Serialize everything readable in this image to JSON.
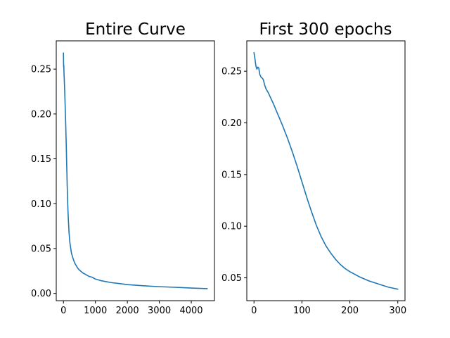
{
  "colors": {
    "line": "#1f77b4"
  },
  "chart_data": [
    {
      "type": "line",
      "title": "Entire Curve",
      "xlabel": "",
      "ylabel": "",
      "xlim": [
        -225,
        4725
      ],
      "ylim": [
        -0.0081,
        0.2815
      ],
      "x_ticks": [
        0,
        1000,
        2000,
        3000,
        4000
      ],
      "x_tick_labels": [
        "0",
        "1000",
        "2000",
        "3000",
        "4000"
      ],
      "y_ticks": [
        0.0,
        0.05,
        0.1,
        0.15,
        0.2,
        0.25
      ],
      "y_tick_labels": [
        "0.00",
        "0.05",
        "0.10",
        "0.15",
        "0.20",
        "0.25"
      ],
      "grid": false,
      "series": [
        {
          "x": [
            0,
            2,
            5,
            8,
            10,
            12,
            15,
            20,
            25,
            30,
            40,
            50,
            60,
            70,
            80,
            90,
            100,
            110,
            120,
            130,
            140,
            150,
            175,
            200,
            250,
            300,
            350,
            400,
            450,
            500,
            600,
            700,
            800,
            900,
            1000,
            1200,
            1500,
            1750,
            2000,
            2500,
            3000,
            3500,
            4000,
            4500
          ],
          "y": [
            0.268,
            0.262,
            0.254,
            0.252,
            0.253,
            0.254,
            0.248,
            0.243,
            0.24,
            0.234,
            0.225,
            0.214,
            0.202,
            0.19,
            0.176,
            0.162,
            0.146,
            0.131,
            0.117,
            0.105,
            0.094,
            0.085,
            0.068,
            0.057,
            0.045,
            0.039,
            0.034,
            0.031,
            0.028,
            0.026,
            0.023,
            0.021,
            0.019,
            0.018,
            0.016,
            0.014,
            0.012,
            0.011,
            0.0098,
            0.0085,
            0.0075,
            0.0068,
            0.006,
            0.0053
          ]
        }
      ]
    },
    {
      "type": "line",
      "title": "First 300 epochs",
      "xlabel": "",
      "ylabel": "",
      "xlim": [
        -15,
        315
      ],
      "ylim": [
        0.0279,
        0.2794
      ],
      "x_ticks": [
        0,
        100,
        200,
        300
      ],
      "x_tick_labels": [
        "0",
        "100",
        "200",
        "300"
      ],
      "y_ticks": [
        0.05,
        0.1,
        0.15,
        0.2,
        0.25
      ],
      "y_tick_labels": [
        "0.05",
        "0.10",
        "0.15",
        "0.20",
        "0.25"
      ],
      "grid": false,
      "series": [
        {
          "x": [
            0,
            2,
            4,
            6,
            8,
            10,
            12,
            15,
            18,
            20,
            22,
            25,
            30,
            40,
            50,
            60,
            70,
            80,
            90,
            100,
            110,
            120,
            130,
            140,
            150,
            160,
            170,
            180,
            190,
            200,
            220,
            240,
            260,
            280,
            300
          ],
          "y": [
            0.268,
            0.262,
            0.255,
            0.252,
            0.254,
            0.253,
            0.247,
            0.244,
            0.243,
            0.241,
            0.237,
            0.233,
            0.229,
            0.219,
            0.208,
            0.197,
            0.185,
            0.172,
            0.158,
            0.143,
            0.128,
            0.114,
            0.101,
            0.09,
            0.081,
            0.074,
            0.068,
            0.063,
            0.059,
            0.056,
            0.051,
            0.047,
            0.044,
            0.041,
            0.039
          ]
        }
      ]
    }
  ]
}
